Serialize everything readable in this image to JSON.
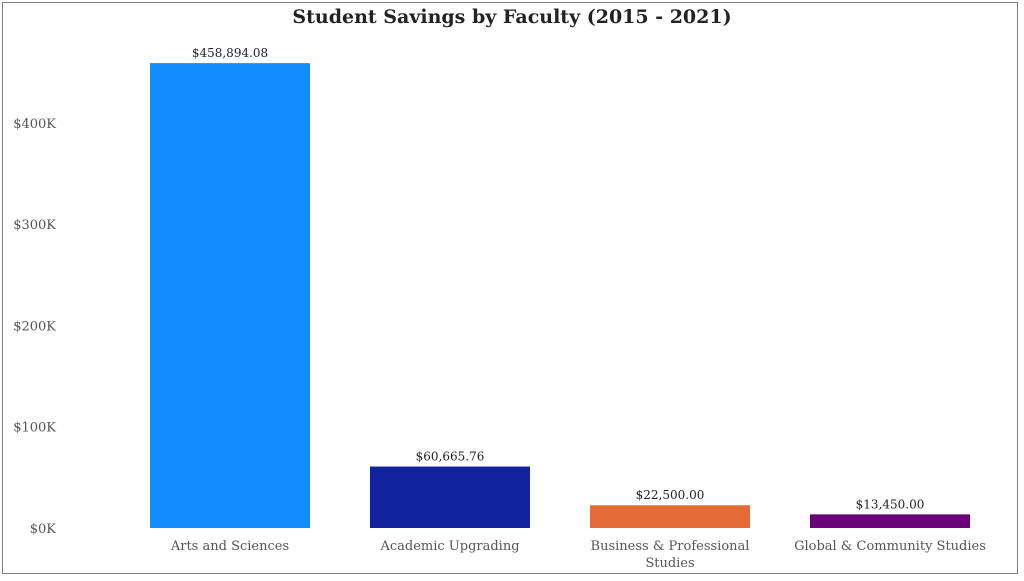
{
  "chart_data": {
    "type": "bar",
    "title": "Student Savings by Faculty (2015 - 2021)",
    "xlabel": "",
    "ylabel": "",
    "categories": [
      "Arts and Sciences",
      "Academic Upgrading",
      "Business & Professional Studies",
      "Global & Community Studies"
    ],
    "values": [
      458894.08,
      60665.76,
      22500.0,
      13450.0
    ],
    "data_labels": [
      "$458,894.08",
      "$60,665.76",
      "$22,500.00",
      "$13,450.00"
    ],
    "colors": [
      "#118DFF",
      "#12239E",
      "#E66C37",
      "#6B007B"
    ],
    "ylim": [
      0,
      460000
    ],
    "y_ticks": [
      0,
      100000,
      200000,
      300000,
      400000
    ],
    "y_tick_labels": [
      "$0K",
      "$100K",
      "$200K",
      "$300K",
      "$400K"
    ],
    "grid": false,
    "legend": "none"
  }
}
